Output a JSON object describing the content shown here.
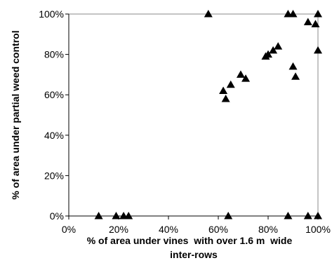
{
  "chart_data": {
    "type": "scatter",
    "title": "",
    "xlabel_lines": [
      "% of area under vines  with over 1.6 m  wide",
      "inter-rows"
    ],
    "ylabel": "% of area under partial weed control",
    "xlim": [
      0,
      100
    ],
    "ylim": [
      0,
      100
    ],
    "x_ticks": [
      0,
      20,
      40,
      60,
      80,
      100
    ],
    "y_ticks": [
      0,
      20,
      40,
      60,
      80,
      100
    ],
    "x_tick_labels": [
      "0%",
      "20%",
      "40%",
      "60%",
      "80%",
      "100%"
    ],
    "y_tick_labels": [
      "0%",
      "20%",
      "40%",
      "60%",
      "80%",
      "100%"
    ],
    "grid": false,
    "legend": "none",
    "marker": "triangle",
    "marker_color": "#000000",
    "points": [
      {
        "x": 12,
        "y": 0
      },
      {
        "x": 19,
        "y": 0
      },
      {
        "x": 22,
        "y": 0
      },
      {
        "x": 24,
        "y": 0
      },
      {
        "x": 64,
        "y": 0
      },
      {
        "x": 88,
        "y": 0
      },
      {
        "x": 96,
        "y": 0
      },
      {
        "x": 100,
        "y": 0
      },
      {
        "x": 56,
        "y": 100
      },
      {
        "x": 62,
        "y": 62
      },
      {
        "x": 63,
        "y": 58
      },
      {
        "x": 65,
        "y": 65
      },
      {
        "x": 69,
        "y": 70
      },
      {
        "x": 71,
        "y": 68
      },
      {
        "x": 79,
        "y": 79
      },
      {
        "x": 80,
        "y": 80
      },
      {
        "x": 82,
        "y": 82
      },
      {
        "x": 84,
        "y": 84
      },
      {
        "x": 88,
        "y": 100
      },
      {
        "x": 90,
        "y": 100
      },
      {
        "x": 90,
        "y": 74
      },
      {
        "x": 91,
        "y": 69
      },
      {
        "x": 96,
        "y": 96
      },
      {
        "x": 99,
        "y": 95
      },
      {
        "x": 100,
        "y": 100
      },
      {
        "x": 100,
        "y": 82
      }
    ]
  }
}
